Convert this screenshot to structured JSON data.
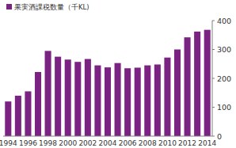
{
  "chart_data": {
    "type": "bar",
    "categories": [
      "1994",
      null,
      "1996",
      null,
      "1998",
      null,
      "2000",
      null,
      "2002",
      null,
      "2004",
      null,
      "2006",
      null,
      "2008",
      null,
      "2010",
      null,
      "2012",
      null,
      "2014"
    ],
    "series": [
      {
        "name": "果実酒課税数量（千KL)",
        "color": "#7b2382",
        "values": [
          120,
          140,
          155,
          222,
          295,
          275,
          265,
          257,
          267,
          245,
          238,
          253,
          235,
          237,
          245,
          248,
          272,
          300,
          342,
          362,
          368
        ]
      }
    ],
    "ylim": [
      0,
      400
    ],
    "yticks": [
      0,
      100,
      200,
      300,
      400
    ],
    "grid": false,
    "legend": "upper left"
  }
}
